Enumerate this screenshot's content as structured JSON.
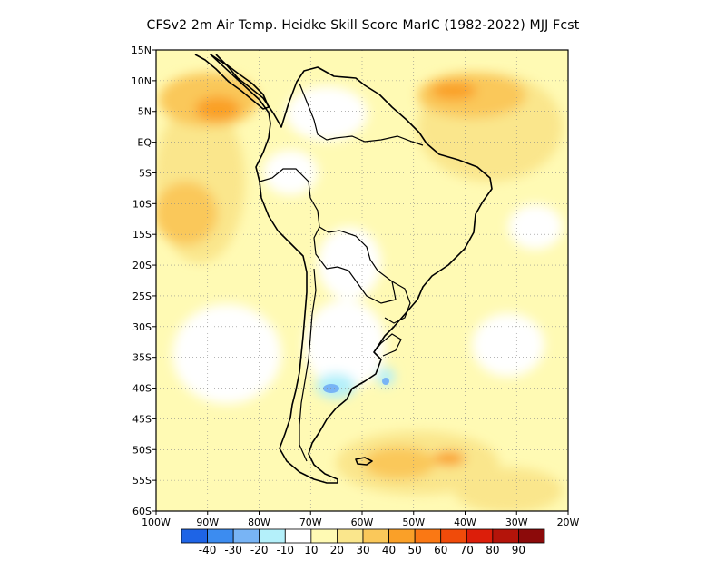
{
  "title": "CFSv2  2m Air Temp. Heidke Skill Score MarIC (1982-2022) MJJ Fcst",
  "map": {
    "lat_labels": [
      "15N",
      "10N",
      "5N",
      "EQ",
      "5S",
      "10S",
      "15S",
      "20S",
      "25S",
      "30S",
      "35S",
      "40S",
      "45S",
      "50S",
      "55S",
      "60S"
    ],
    "lon_labels": [
      "100W",
      "90W",
      "80W",
      "70W",
      "60W",
      "50W",
      "40W",
      "30W",
      "20W"
    ],
    "extent": {
      "lon_min": -100,
      "lon_max": -20,
      "lat_min": -60,
      "lat_max": 15
    }
  },
  "colorbar": {
    "labels": [
      "-40",
      "-30",
      "-20",
      "-10",
      "10",
      "20",
      "30",
      "40",
      "50",
      "60",
      "70",
      "80",
      "90"
    ],
    "colors": [
      "#1e64e6",
      "#3c8cf0",
      "#78b4f5",
      "#b4f0fa",
      "#ffffff",
      "#fffab4",
      "#fae68c",
      "#fac85a",
      "#faa028",
      "#fa7814",
      "#f04b0a",
      "#dc1e0a",
      "#b4140a",
      "#8c0a0a"
    ]
  }
}
